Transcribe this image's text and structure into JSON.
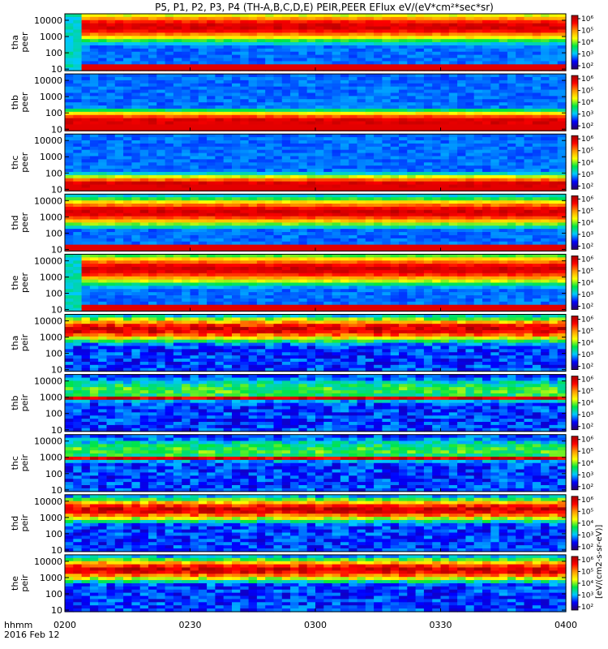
{
  "chart_data": {
    "type": "heatmap",
    "title": "P5, P1, P2, P3, P4 (TH-A,B,C,D,E) PEIR,PEER EFlux eV/(eV*cm²*sec*sr)",
    "date_label": "2016 Feb 12",
    "time_axis_label": "hhmm",
    "x_ticks": [
      "0200",
      "0230",
      "0300",
      "0330",
      "0400"
    ],
    "x_range_minutes": [
      0,
      120
    ],
    "y_scale": "log",
    "y_range": [
      8,
      25000
    ],
    "y_ticks": [
      10,
      100,
      1000,
      10000
    ],
    "y_tick_labels": [
      "10",
      "100",
      "1000",
      "10000"
    ],
    "colorbar": {
      "scale": "log",
      "tick_labels": [
        "10²",
        "10³",
        "10⁴",
        "10⁵",
        "10⁶"
      ],
      "label": "[eV/(cm2-s-sr-eV)]",
      "colors": [
        "#2a0060",
        "#0000ff",
        "#00c8ff",
        "#00e640",
        "#ffff00",
        "#ff9900",
        "#ff0000",
        "#a00000"
      ]
    },
    "panels": [
      {
        "label1": "tha",
        "label2": "peer",
        "species": "electron",
        "profile": {
          "peak_energy": 4000,
          "spread": 0.95,
          "onset_min": 4
        }
      },
      {
        "label1": "thb",
        "label2": "peer",
        "species": "electron",
        "profile": {
          "peak_energy": 30,
          "spread": 0.7,
          "onset_min": 0
        }
      },
      {
        "label1": "thc",
        "label2": "peer",
        "species": "electron",
        "profile": {
          "peak_energy": 20,
          "spread": 0.6,
          "onset_min": 0
        }
      },
      {
        "label1": "thd",
        "label2": "peer",
        "species": "electron",
        "profile": {
          "peak_energy": 2000,
          "spread": 0.9,
          "onset_min": 0
        }
      },
      {
        "label1": "the",
        "label2": "peer",
        "species": "electron",
        "profile": {
          "peak_energy": 3000,
          "spread": 0.95,
          "onset_min": 3
        }
      },
      {
        "label1": "tha",
        "label2": "peir",
        "species": "ion",
        "profile": {
          "peak_energy": 3000,
          "spread": 0.75,
          "onset_min": 0
        }
      },
      {
        "label1": "thb",
        "label2": "peir",
        "species": "ion",
        "profile": {
          "peak_energy": 900,
          "spread": 0.12,
          "onset_min": 0
        }
      },
      {
        "label1": "thc",
        "label2": "peir",
        "species": "ion",
        "profile": {
          "peak_energy": 850,
          "spread": 0.1,
          "onset_min": 0
        }
      },
      {
        "label1": "thd",
        "label2": "peir",
        "species": "ion",
        "profile": {
          "peak_energy": 3000,
          "spread": 0.7,
          "onset_min": 0
        }
      },
      {
        "label1": "the",
        "label2": "peir",
        "species": "ion",
        "profile": {
          "peak_energy": 3000,
          "spread": 0.7,
          "onset_min": 0
        }
      }
    ]
  }
}
